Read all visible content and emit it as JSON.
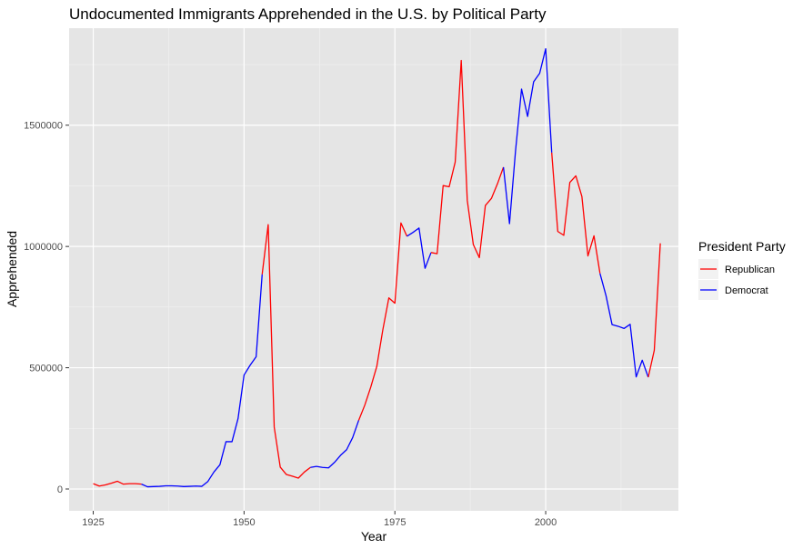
{
  "chart_data": {
    "type": "line",
    "title": "Undocumented Immigrants Apprehended in the U.S. by Political Party",
    "xlabel": "Year",
    "ylabel": "Apprehended",
    "xlim": [
      1921,
      2022
    ],
    "ylim": [
      -90000,
      1900000
    ],
    "x_ticks": [
      1925,
      1950,
      1975,
      2000
    ],
    "x_tick_labels": [
      "1925",
      "1950",
      "1975",
      "2000"
    ],
    "y_ticks": [
      0,
      500000,
      1000000,
      1500000
    ],
    "y_tick_labels": [
      "0",
      "500000",
      "1000000",
      "1500000"
    ],
    "grid": true,
    "panel_background": "#e5e5e5",
    "legend": {
      "title": "President Party",
      "position": "right",
      "entries": [
        {
          "label": "Republican",
          "color": "#ff0000"
        },
        {
          "label": "Democrat",
          "color": "#0000ff"
        }
      ]
    },
    "series": [
      {
        "name": "Republican",
        "color": "#ff0000",
        "x": [
          1925,
          1926,
          1927,
          1928,
          1929,
          1930,
          1931,
          1932,
          1933
        ],
        "y": [
          22000,
          12000,
          17000,
          24000,
          32000,
          20000,
          22000,
          22000,
          20000
        ]
      },
      {
        "name": "Democrat",
        "color": "#0000ff",
        "x": [
          1933,
          1934,
          1935,
          1936,
          1937,
          1938,
          1939,
          1940,
          1941,
          1942,
          1943,
          1944,
          1945,
          1946,
          1947,
          1948,
          1949,
          1950,
          1951,
          1952,
          1953
        ],
        "y": [
          20000,
          9000,
          10000,
          11000,
          13000,
          13000,
          12000,
          10000,
          11000,
          12000,
          11000,
          31000,
          70000,
          100000,
          195000,
          195000,
          290000,
          470000,
          510000,
          545000,
          885000
        ]
      },
      {
        "name": "Republican",
        "color": "#ff0000",
        "x": [
          1953,
          1954,
          1955,
          1956,
          1957,
          1958,
          1959,
          1960,
          1961
        ],
        "y": [
          885000,
          1090000,
          255000,
          90000,
          60000,
          53000,
          45000,
          70000,
          89000
        ]
      },
      {
        "name": "Democrat",
        "color": "#0000ff",
        "x": [
          1961,
          1962,
          1963,
          1964,
          1965,
          1966,
          1967,
          1968,
          1969
        ],
        "y": [
          89000,
          93000,
          89000,
          87000,
          110000,
          139000,
          162000,
          212000,
          283000
        ]
      },
      {
        "name": "Republican",
        "color": "#ff0000",
        "x": [
          1969,
          1970,
          1971,
          1972,
          1973,
          1974,
          1975,
          1976,
          1977
        ],
        "y": [
          283000,
          345000,
          420000,
          505000,
          656000,
          788000,
          766000,
          1097000,
          1042000
        ]
      },
      {
        "name": "Democrat",
        "color": "#0000ff",
        "x": [
          1977,
          1978,
          1979,
          1980,
          1981
        ],
        "y": [
          1042000,
          1058000,
          1076000,
          910000,
          975000
        ]
      },
      {
        "name": "Republican",
        "color": "#ff0000",
        "x": [
          1981,
          1982,
          1983,
          1984,
          1985,
          1986,
          1987,
          1988,
          1989,
          1990,
          1991,
          1992,
          1993
        ],
        "y": [
          975000,
          970000,
          1251000,
          1246000,
          1348000,
          1767000,
          1190000,
          1008000,
          954000,
          1169000,
          1198000,
          1258000,
          1327000
        ]
      },
      {
        "name": "Democrat",
        "color": "#0000ff",
        "x": [
          1993,
          1994,
          1995,
          1996,
          1997,
          1998,
          1999,
          2000,
          2001
        ],
        "y": [
          1327000,
          1094000,
          1394000,
          1649000,
          1536000,
          1679000,
          1714000,
          1815000,
          1387000
        ]
      },
      {
        "name": "Republican",
        "color": "#ff0000",
        "x": [
          2001,
          2002,
          2003,
          2004,
          2005,
          2006,
          2007,
          2008,
          2009
        ],
        "y": [
          1387000,
          1062000,
          1046000,
          1264000,
          1291000,
          1206000,
          961000,
          1044000,
          889000
        ]
      },
      {
        "name": "Democrat",
        "color": "#0000ff",
        "x": [
          2009,
          2010,
          2011,
          2012,
          2013,
          2014,
          2015,
          2016,
          2017
        ],
        "y": [
          889000,
          797000,
          678000,
          671000,
          662000,
          679000,
          462000,
          531000,
          461000
        ]
      },
      {
        "name": "Republican",
        "color": "#ff0000",
        "x": [
          2017,
          2018,
          2019
        ],
        "y": [
          461000,
          572000,
          1013000
        ]
      }
    ]
  }
}
